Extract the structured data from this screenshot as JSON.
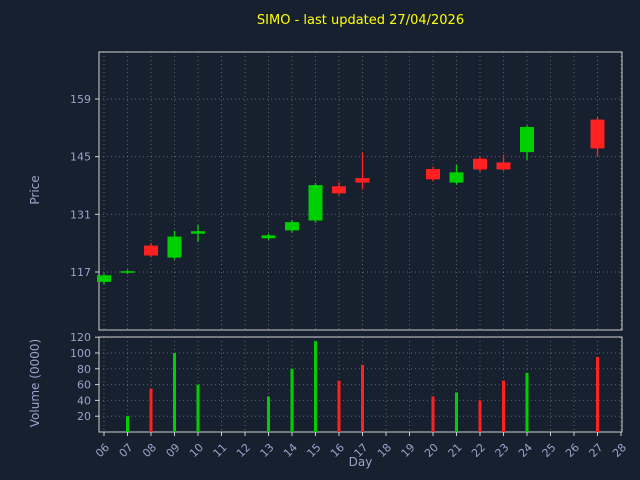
{
  "title": "SIMO - last updated 27/04/2026",
  "colors": {
    "background": "#17202f",
    "title": "#ffff00",
    "tick_label": "#9aa3cc",
    "axis_label": "#9aa3cc",
    "grid": "#9a9a9a",
    "spine": "#cfcfcf",
    "up": "#00cf00",
    "down": "#ff2020"
  },
  "chart_data": [
    {
      "type": "candlestick",
      "panel": "price",
      "ylabel": "Price",
      "xlabel": "Day",
      "x_ticks": [
        "06",
        "07",
        "08",
        "09",
        "10",
        "11",
        "12",
        "13",
        "14",
        "15",
        "16",
        "17",
        "18",
        "19",
        "20",
        "21",
        "22",
        "23",
        "24",
        "25",
        "26",
        "27",
        "28"
      ],
      "y_ticks": [
        117,
        131,
        145,
        159
      ],
      "ylim": [
        103,
        170.5
      ],
      "grid": true,
      "candles": [
        {
          "day": "06",
          "open": 114.6,
          "high": 116.6,
          "low": 114.0,
          "close": 116.2
        },
        {
          "day": "07",
          "open": 116.9,
          "high": 117.6,
          "low": 116.5,
          "close": 117.2
        },
        {
          "day": "08",
          "open": 123.4,
          "high": 124.0,
          "low": 120.6,
          "close": 121.0
        },
        {
          "day": "09",
          "open": 120.5,
          "high": 127.0,
          "low": 120.0,
          "close": 125.6
        },
        {
          "day": "10",
          "open": 126.3,
          "high": 128.4,
          "low": 124.3,
          "close": 126.9
        },
        {
          "day": "13",
          "open": 125.2,
          "high": 126.3,
          "low": 124.8,
          "close": 125.9
        },
        {
          "day": "14",
          "open": 127.1,
          "high": 129.6,
          "low": 126.6,
          "close": 129.1
        },
        {
          "day": "15",
          "open": 129.5,
          "high": 138.6,
          "low": 129.0,
          "close": 138.1
        },
        {
          "day": "16",
          "open": 137.8,
          "high": 138.8,
          "low": 135.6,
          "close": 136.1
        },
        {
          "day": "17",
          "open": 139.8,
          "high": 146.0,
          "low": 137.0,
          "close": 138.7
        },
        {
          "day": "20",
          "open": 142.0,
          "high": 142.6,
          "low": 139.0,
          "close": 139.5
        },
        {
          "day": "21",
          "open": 138.7,
          "high": 143.0,
          "low": 138.2,
          "close": 141.2
        },
        {
          "day": "22",
          "open": 144.5,
          "high": 145.0,
          "low": 141.4,
          "close": 141.9
        },
        {
          "day": "23",
          "open": 143.6,
          "high": 145.5,
          "low": 141.5,
          "close": 141.9
        },
        {
          "day": "24",
          "open": 146.1,
          "high": 152.6,
          "low": 144.2,
          "close": 152.2
        },
        {
          "day": "27",
          "open": 154.0,
          "high": 154.6,
          "low": 145.0,
          "close": 147.0
        }
      ]
    },
    {
      "type": "bar",
      "panel": "volume",
      "ylabel": "Volume (0000)",
      "y_ticks": [
        20,
        40,
        60,
        80,
        100,
        120
      ],
      "ylim": [
        0,
        120.3
      ],
      "grid": true,
      "bars": [
        {
          "day": "07",
          "value": 20
        },
        {
          "day": "08",
          "value": 55
        },
        {
          "day": "09",
          "value": 100
        },
        {
          "day": "10",
          "value": 60
        },
        {
          "day": "13",
          "value": 45
        },
        {
          "day": "14",
          "value": 80
        },
        {
          "day": "15",
          "value": 115
        },
        {
          "day": "16",
          "value": 65
        },
        {
          "day": "17",
          "value": 85
        },
        {
          "day": "20",
          "value": 45
        },
        {
          "day": "21",
          "value": 50
        },
        {
          "day": "22",
          "value": 40
        },
        {
          "day": "23",
          "value": 65
        },
        {
          "day": "24",
          "value": 75
        },
        {
          "day": "27",
          "value": 95
        }
      ]
    }
  ]
}
